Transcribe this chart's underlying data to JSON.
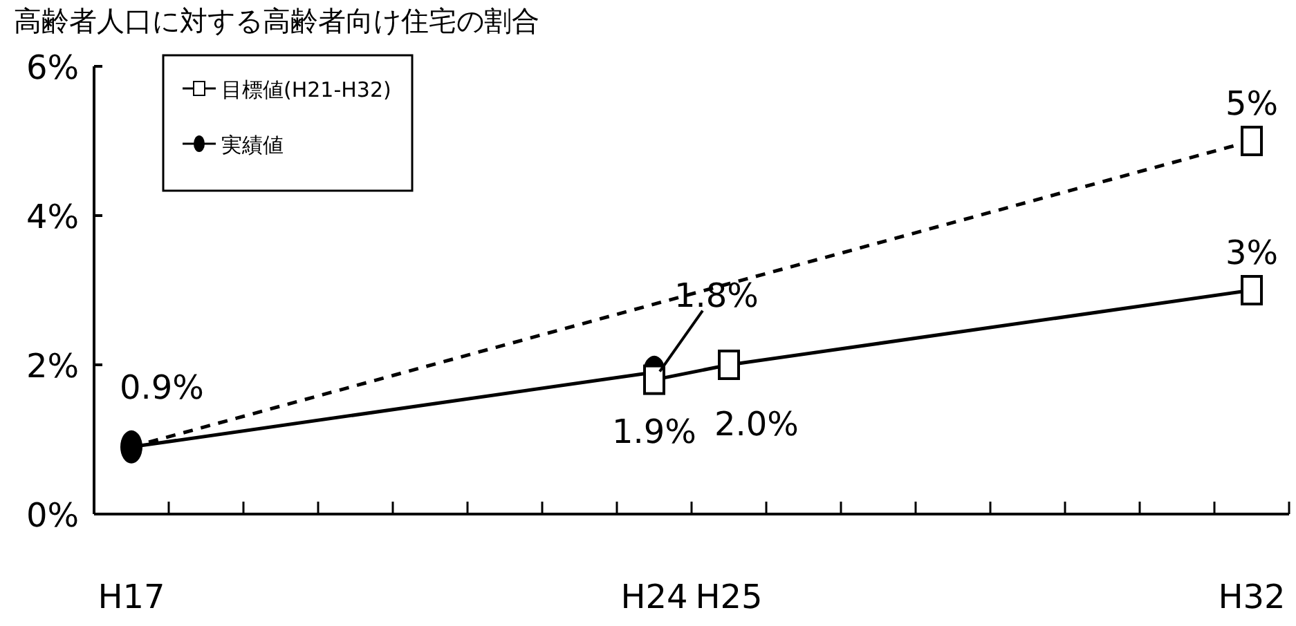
{
  "chart_data": {
    "type": "line",
    "title": "高齢者人口に対する高齢者向け住宅の割合",
    "categories": [
      "H17",
      null,
      null,
      null,
      null,
      null,
      null,
      "H24",
      "H25",
      null,
      null,
      null,
      null,
      null,
      null,
      "H32"
    ],
    "ylim": [
      0,
      6
    ],
    "yticks": [
      {
        "value": 0,
        "label": "0%"
      },
      {
        "value": 2,
        "label": "2%"
      },
      {
        "value": 4,
        "label": "4%"
      },
      {
        "value": 6,
        "label": "6%"
      }
    ],
    "grid": false,
    "legend": "top left",
    "series": [
      {
        "color": "#000000",
        "x": [
          "H17",
          "H32"
        ],
        "values": [
          0.9,
          5
        ],
        "line_style": "dashed"
      },
      {
        "name": "実績値",
        "color": "#000000",
        "x": [
          "H17",
          "H24"
        ],
        "values": [
          0.9,
          1.9
        ],
        "line_style": "solid",
        "marker": "circle",
        "value_labels": [
          "0.9%",
          "1.9%"
        ]
      },
      {
        "name": "目標値(H21-H32)",
        "color": "#000000",
        "x": [
          "H24",
          "H25",
          "H32"
        ],
        "values": [
          1.8,
          2.0,
          3
        ],
        "line_style": "solid",
        "marker": "square",
        "value_labels": [
          "1.8%",
          "2.0%",
          "3%"
        ]
      },
      {
        "type": "scatter",
        "color": "#000000",
        "x": [
          "H32"
        ],
        "values": [
          5
        ],
        "marker": "square",
        "value_labels": [
          "5%"
        ]
      }
    ]
  }
}
